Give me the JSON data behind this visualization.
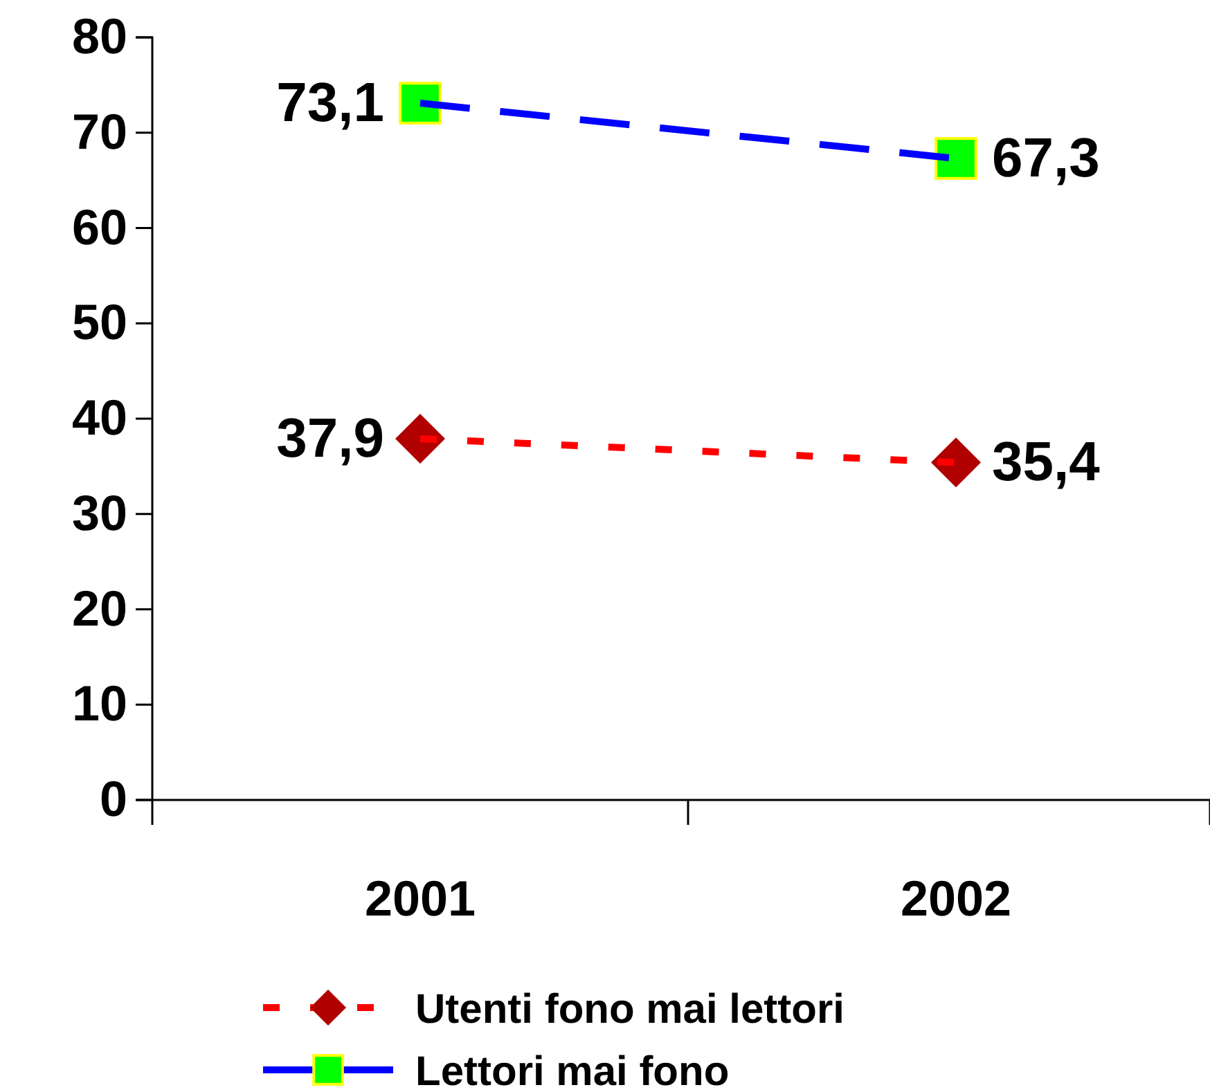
{
  "chart_data": {
    "type": "line",
    "categories": [
      "2001",
      "2002"
    ],
    "series": [
      {
        "name": "Utenti fono mai lettori",
        "color": "#ff0000",
        "values": [
          37.9,
          35.4
        ],
        "value_labels": [
          "37,9",
          "35,4"
        ],
        "marker": "diamond",
        "line_style": "dotted"
      },
      {
        "name": "Lettori mai fono",
        "color": "#0000ff",
        "values": [
          73.1,
          67.3
        ],
        "value_labels": [
          "73,1",
          "67,3"
        ],
        "marker": "square",
        "line_style": "dashed"
      }
    ],
    "ylim": [
      0,
      80
    ],
    "yticks": [
      0,
      10,
      20,
      30,
      40,
      50,
      60,
      70,
      80
    ],
    "grid": false,
    "legend": "bottom"
  }
}
